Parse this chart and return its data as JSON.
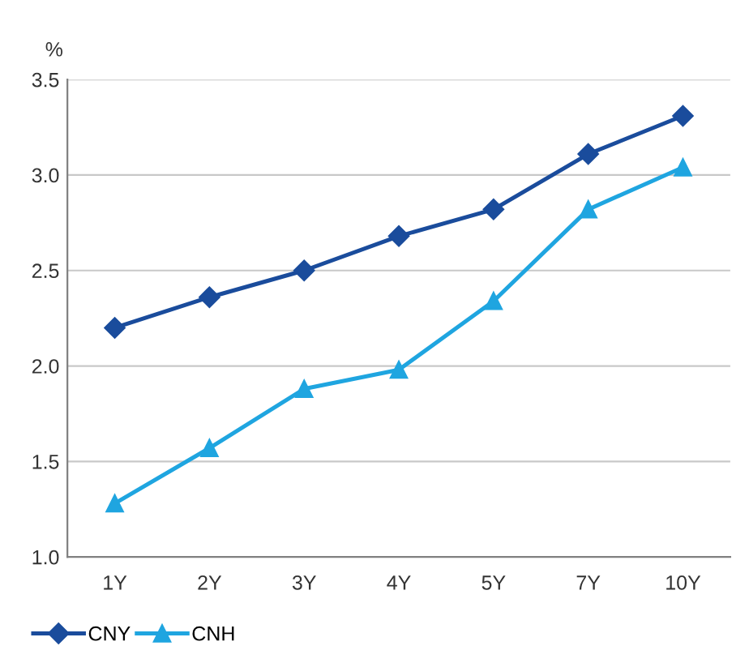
{
  "chart_data": {
    "type": "line",
    "ylabel": "%",
    "categories": [
      "1Y",
      "2Y",
      "3Y",
      "4Y",
      "5Y",
      "7Y",
      "10Y"
    ],
    "series": [
      {
        "name": "CNY",
        "color": "#1a4c9c",
        "marker": "diamond",
        "values": [
          2.2,
          2.36,
          2.5,
          2.68,
          2.82,
          3.11,
          3.31
        ]
      },
      {
        "name": "CNH",
        "color": "#1fa5e0",
        "marker": "triangle",
        "values": [
          1.28,
          1.57,
          1.88,
          1.98,
          2.34,
          2.82,
          3.04
        ]
      }
    ],
    "ylim": [
      1.0,
      3.5
    ],
    "yticks": [
      {
        "value": 1.0,
        "label": "1.0"
      },
      1.5,
      {
        "value": 2.0,
        "label": "2.0"
      },
      2.5,
      {
        "value": 3.0,
        "label": "3.0"
      },
      3.5
    ],
    "grid": "y",
    "legend": "bottom left",
    "line_style": "solid"
  }
}
